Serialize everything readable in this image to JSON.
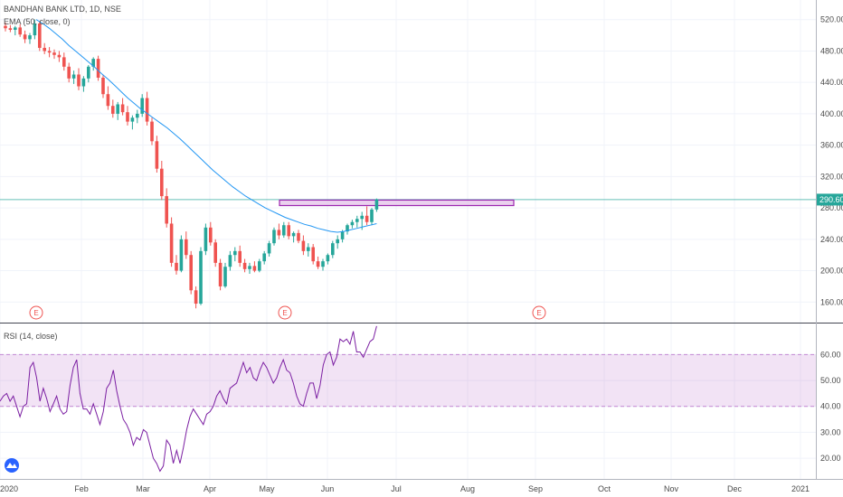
{
  "chart_data": {
    "type": "candlestick",
    "title": "BANDHAN BANK LTD, 1D, NSE",
    "indicator_label": "EMA (50, close, 0)",
    "rsi_label": "RSI (14, close)",
    "price_axis": {
      "min": 135,
      "max": 545,
      "ticks": [
        "520.00",
        "480.00",
        "440.00",
        "400.00",
        "360.00",
        "320.00",
        "280.00",
        "240.00",
        "200.00",
        "160.00"
      ]
    },
    "rsi_axis": {
      "min": 12,
      "max": 72,
      "ticks": [
        "60.00",
        "50.00",
        "40.00",
        "30.00",
        "20.00"
      ],
      "band": [
        40,
        60
      ]
    },
    "time_axis": {
      "labels": [
        "2020",
        "Feb",
        "Mar",
        "Apr",
        "May",
        "Jun",
        "Jul",
        "Aug",
        "Sep",
        "Oct",
        "Nov",
        "Dec",
        "2021"
      ]
    },
    "last_price_label": "290.60",
    "last_price": 290.6,
    "resistance_zone": {
      "low": 283,
      "high": 290
    },
    "earnings_marker": "E",
    "candles": [
      [
        512,
        516,
        505,
        509
      ],
      [
        509,
        513,
        504,
        507
      ],
      [
        507,
        512,
        500,
        510
      ],
      [
        510,
        514,
        498,
        501
      ],
      [
        501,
        506,
        490,
        495
      ],
      [
        495,
        503,
        489,
        500
      ],
      [
        500,
        520,
        495,
        515
      ],
      [
        515,
        518,
        480,
        484
      ],
      [
        484,
        490,
        476,
        480
      ],
      [
        480,
        485,
        472,
        478
      ],
      [
        478,
        482,
        470,
        475
      ],
      [
        475,
        480,
        466,
        472
      ],
      [
        472,
        478,
        455,
        460
      ],
      [
        460,
        465,
        440,
        445
      ],
      [
        445,
        455,
        438,
        450
      ],
      [
        450,
        458,
        430,
        435
      ],
      [
        435,
        448,
        428,
        445
      ],
      [
        445,
        462,
        440,
        460
      ],
      [
        460,
        472,
        455,
        470
      ],
      [
        470,
        474,
        442,
        446
      ],
      [
        446,
        450,
        420,
        425
      ],
      [
        425,
        435,
        405,
        410
      ],
      [
        410,
        418,
        395,
        400
      ],
      [
        400,
        415,
        392,
        412
      ],
      [
        412,
        420,
        398,
        402
      ],
      [
        402,
        410,
        385,
        390
      ],
      [
        390,
        398,
        380,
        395
      ],
      [
        395,
        405,
        388,
        400
      ],
      [
        400,
        425,
        396,
        420
      ],
      [
        420,
        428,
        385,
        390
      ],
      [
        390,
        395,
        360,
        365
      ],
      [
        365,
        372,
        325,
        330
      ],
      [
        330,
        340,
        290,
        295
      ],
      [
        295,
        305,
        255,
        260
      ],
      [
        260,
        268,
        205,
        210
      ],
      [
        210,
        220,
        195,
        200
      ],
      [
        200,
        245,
        198,
        240
      ],
      [
        240,
        250,
        215,
        220
      ],
      [
        220,
        225,
        170,
        175
      ],
      [
        175,
        180,
        152,
        158
      ],
      [
        158,
        230,
        156,
        225
      ],
      [
        225,
        260,
        220,
        255
      ],
      [
        255,
        262,
        232,
        236
      ],
      [
        236,
        240,
        205,
        210
      ],
      [
        210,
        215,
        175,
        180
      ],
      [
        180,
        210,
        178,
        205
      ],
      [
        205,
        225,
        200,
        220
      ],
      [
        220,
        230,
        212,
        225
      ],
      [
        225,
        232,
        205,
        210
      ],
      [
        210,
        215,
        198,
        202
      ],
      [
        202,
        210,
        196,
        206
      ],
      [
        206,
        212,
        198,
        200
      ],
      [
        200,
        215,
        198,
        212
      ],
      [
        212,
        225,
        208,
        222
      ],
      [
        222,
        238,
        218,
        235
      ],
      [
        235,
        255,
        232,
        252
      ],
      [
        252,
        260,
        240,
        245
      ],
      [
        245,
        262,
        242,
        258
      ],
      [
        258,
        262,
        240,
        244
      ],
      [
        244,
        250,
        236,
        248
      ],
      [
        248,
        252,
        235,
        238
      ],
      [
        238,
        245,
        220,
        225
      ],
      [
        225,
        235,
        218,
        230
      ],
      [
        230,
        234,
        208,
        212
      ],
      [
        212,
        218,
        202,
        205
      ],
      [
        205,
        215,
        200,
        212
      ],
      [
        212,
        222,
        208,
        220
      ],
      [
        220,
        238,
        216,
        235
      ],
      [
        235,
        245,
        228,
        240
      ],
      [
        240,
        252,
        236,
        250
      ],
      [
        250,
        260,
        246,
        258
      ],
      [
        258,
        265,
        254,
        262
      ],
      [
        262,
        270,
        255,
        266
      ],
      [
        266,
        275,
        252,
        270
      ],
      [
        270,
        282,
        258,
        262
      ],
      [
        262,
        280,
        258,
        278
      ],
      [
        278,
        292,
        275,
        291
      ]
    ],
    "ema": [
      520,
      515,
      509,
      502,
      495,
      487,
      480,
      473,
      466,
      459,
      451,
      444,
      436,
      428,
      420,
      413,
      406,
      400,
      394,
      388,
      382,
      375,
      368,
      360,
      352,
      344,
      336,
      328,
      321,
      314,
      307,
      301,
      295,
      290,
      285,
      280,
      276,
      272,
      268,
      265,
      262,
      259,
      257,
      254,
      252,
      250,
      249,
      250,
      252,
      254,
      256,
      258,
      260
    ],
    "rsi": [
      42,
      44,
      45,
      42,
      44,
      40,
      36,
      40,
      41,
      55,
      57,
      51,
      42,
      47,
      43,
      38,
      41,
      44,
      39,
      37,
      38,
      48,
      55,
      58,
      45,
      39,
      39,
      37,
      41,
      37,
      33,
      38,
      47,
      49,
      54,
      46,
      40,
      35,
      33,
      30,
      25,
      28,
      27,
      31,
      30,
      25,
      20,
      18,
      15,
      17,
      27,
      25,
      18,
      23,
      18,
      24,
      31,
      36,
      39,
      37,
      35,
      33,
      37,
      38,
      40,
      44,
      46,
      43,
      41,
      47,
      48,
      49,
      53,
      57,
      53,
      55,
      51,
      50,
      54,
      57,
      55,
      52,
      49,
      51,
      55,
      58,
      54,
      53,
      49,
      44,
      41,
      40,
      45,
      49,
      49,
      43,
      48,
      56,
      60,
      61,
      56,
      59,
      66,
      65,
      66,
      64,
      69,
      61,
      61,
      59,
      62,
      65,
      66,
      71
    ]
  }
}
